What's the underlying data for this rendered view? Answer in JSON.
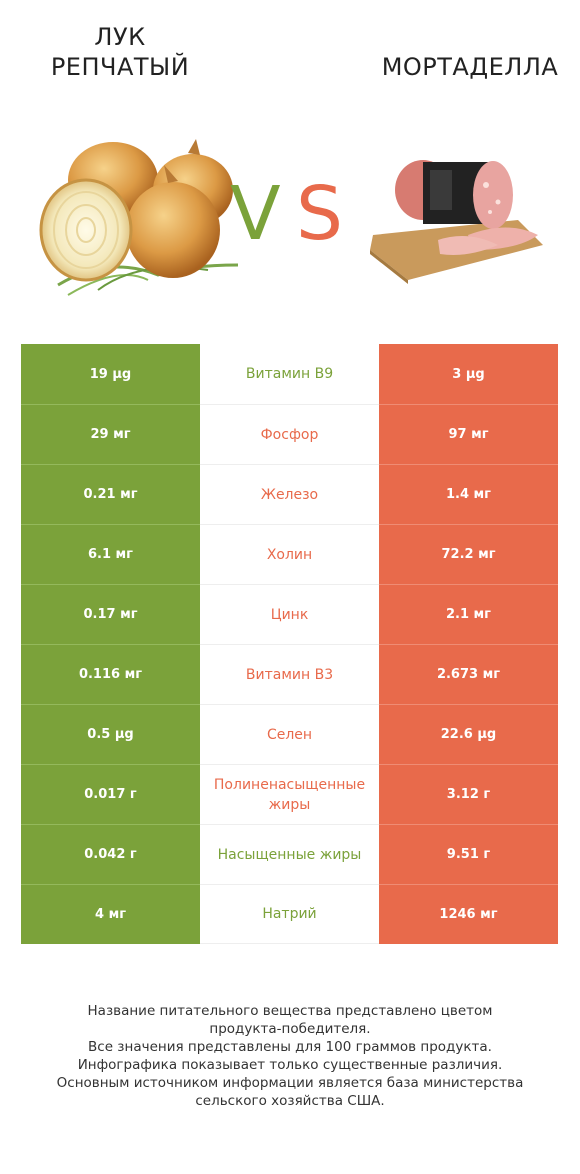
{
  "header": {
    "left_title": "ЛУК\nРЕПЧАТЫЙ",
    "right_title": "МОРТАДЕЛЛА",
    "vs_v": "V",
    "vs_s": "S"
  },
  "colors": {
    "left_accent": "#7ba23a",
    "right_accent": "#e86a4b"
  },
  "rows": [
    {
      "left": "19 µg",
      "name": "Витамин B9",
      "right": "3 µg",
      "winner": "left"
    },
    {
      "left": "29 мг",
      "name": "Фосфор",
      "right": "97 мг",
      "winner": "right"
    },
    {
      "left": "0.21 мг",
      "name": "Железо",
      "right": "1.4 мг",
      "winner": "right"
    },
    {
      "left": "6.1 мг",
      "name": "Холин",
      "right": "72.2 мг",
      "winner": "right"
    },
    {
      "left": "0.17 мг",
      "name": "Цинк",
      "right": "2.1 мг",
      "winner": "right"
    },
    {
      "left": "0.116 мг",
      "name": "Витамин B3",
      "right": "2.673 мг",
      "winner": "right"
    },
    {
      "left": "0.5 µg",
      "name": "Селен",
      "right": "22.6 µg",
      "winner": "right"
    },
    {
      "left": "0.017 г",
      "name": "Полиненасыщенные жиры",
      "right": "3.12 г",
      "winner": "right"
    },
    {
      "left": "0.042 г",
      "name": "Насыщенные жиры",
      "right": "9.51 г",
      "winner": "left"
    },
    {
      "left": "4 мг",
      "name": "Натрий",
      "right": "1246 мг",
      "winner": "left"
    }
  ],
  "footer": {
    "line1": "Название питательного вещества представлено цветом",
    "line2": "продукта-победителя.",
    "line3": "Все значения представлены для 100 граммов продукта.",
    "line4": "Инфографика показывает только существенные различия.",
    "line5": "Основным источником информации является база министерства",
    "line6": "сельского хозяйства США."
  }
}
